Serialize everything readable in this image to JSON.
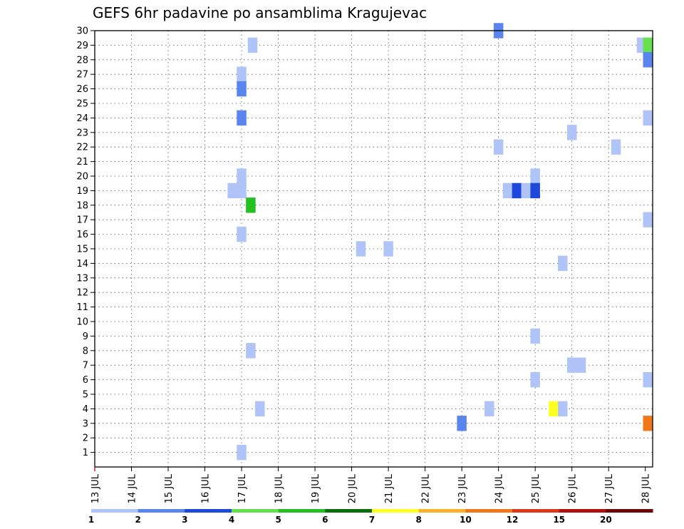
{
  "chart_data": {
    "type": "heatmap",
    "title": "GEFS 6hr padavine po ansamblima Kragujevac",
    "x_tick_labels": [
      "13 JUL",
      "14 JUL",
      "15 JUL",
      "16 JUL",
      "17 JUL",
      "18 JUL",
      "19 JUL",
      "20 JUL",
      "21 JUL",
      "22 JUL",
      "23 JUL",
      "24 JUL",
      "25 JUL",
      "26 JUL",
      "27 JUL",
      "28 JUL"
    ],
    "y_tick_labels": [
      "1",
      "2",
      "3",
      "4",
      "5",
      "6",
      "7",
      "8",
      "9",
      "10",
      "11",
      "12",
      "13",
      "14",
      "15",
      "16",
      "17",
      "18",
      "19",
      "20",
      "21",
      "22",
      "23",
      "24",
      "25",
      "26",
      "27",
      "28",
      "29",
      "30"
    ],
    "x_range_days": [
      0,
      15.2
    ],
    "y_range": [
      0,
      30
    ],
    "grid": true,
    "colorbar": {
      "labels": [
        "1",
        "2",
        "3",
        "4",
        "5",
        "6",
        "7",
        "8",
        "10",
        "12",
        "15",
        "20"
      ],
      "colors": [
        "#b0c4f7",
        "#5a84ee",
        "#1c48dc",
        "#66e04c",
        "#22c020",
        "#0a6e0a",
        "#ffff20",
        "#ffb02a",
        "#f0781a",
        "#dc3a1a",
        "#b01010",
        "#6a0808"
      ]
    },
    "cells": [
      {
        "day": 11.0,
        "member": 30,
        "value": 2
      },
      {
        "day": 4.3,
        "member": 29,
        "value": 1
      },
      {
        "day": 14.9,
        "member": 29,
        "value": 1
      },
      {
        "day": 15.2,
        "member": 29,
        "value": 4
      },
      {
        "day": 15.2,
        "member": 28,
        "value": 2
      },
      {
        "day": 4.0,
        "member": 27,
        "value": 1
      },
      {
        "day": 4.0,
        "member": 26,
        "value": 2
      },
      {
        "day": 4.0,
        "member": 24,
        "value": 2
      },
      {
        "day": 15.2,
        "member": 24,
        "value": 1
      },
      {
        "day": 13.0,
        "member": 23,
        "value": 1
      },
      {
        "day": 11.0,
        "member": 22,
        "value": 1
      },
      {
        "day": 14.2,
        "member": 22,
        "value": 1
      },
      {
        "day": 4.0,
        "member": 20,
        "value": 1
      },
      {
        "day": 12.0,
        "member": 20,
        "value": 1
      },
      {
        "day": 3.75,
        "member": 19,
        "value": 1
      },
      {
        "day": 4.0,
        "member": 19,
        "value": 1
      },
      {
        "day": 11.25,
        "member": 19,
        "value": 1
      },
      {
        "day": 11.5,
        "member": 19,
        "value": 3
      },
      {
        "day": 11.75,
        "member": 19,
        "value": 1
      },
      {
        "day": 12.0,
        "member": 19,
        "value": 3
      },
      {
        "day": 4.25,
        "member": 18,
        "value": 5
      },
      {
        "day": 15.2,
        "member": 17,
        "value": 1
      },
      {
        "day": 4.0,
        "member": 16,
        "value": 1
      },
      {
        "day": 7.25,
        "member": 15,
        "value": 1
      },
      {
        "day": 8.0,
        "member": 15,
        "value": 1
      },
      {
        "day": 12.75,
        "member": 14,
        "value": 1
      },
      {
        "day": 12.0,
        "member": 9,
        "value": 1
      },
      {
        "day": 4.25,
        "member": 8,
        "value": 1
      },
      {
        "day": 13.0,
        "member": 7,
        "value": 1
      },
      {
        "day": 13.25,
        "member": 7,
        "value": 1
      },
      {
        "day": 12.0,
        "member": 6,
        "value": 1
      },
      {
        "day": 15.2,
        "member": 6,
        "value": 1
      },
      {
        "day": 4.5,
        "member": 4,
        "value": 1
      },
      {
        "day": 10.75,
        "member": 4,
        "value": 1
      },
      {
        "day": 12.5,
        "member": 4,
        "value": 7
      },
      {
        "day": 12.75,
        "member": 4,
        "value": 1
      },
      {
        "day": 10.0,
        "member": 3,
        "value": 2
      },
      {
        "day": 15.2,
        "member": 3,
        "value": 10
      },
      {
        "day": 4.0,
        "member": 1,
        "value": 1
      }
    ]
  }
}
